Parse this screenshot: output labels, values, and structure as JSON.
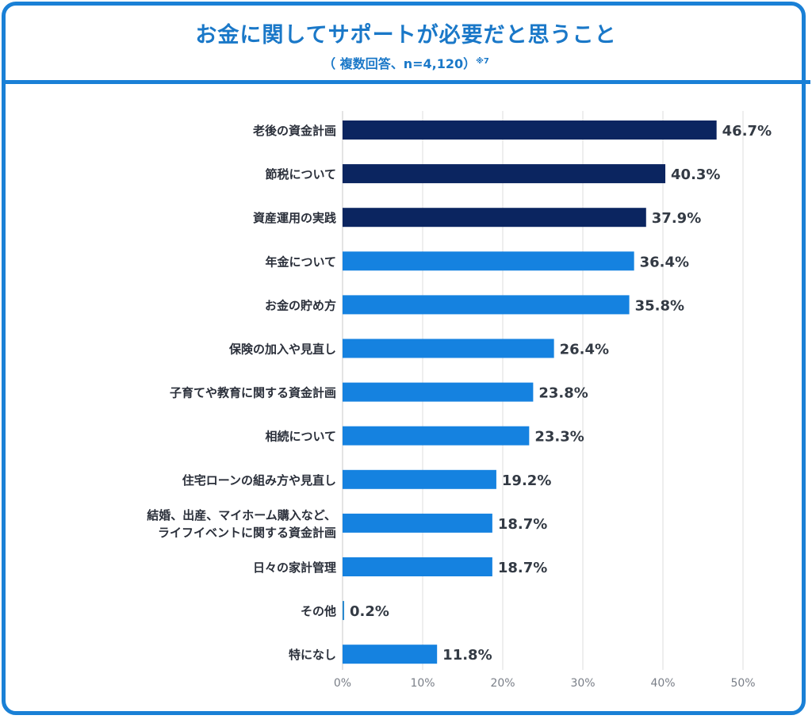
{
  "chart_data": {
    "type": "bar",
    "orientation": "horizontal",
    "title": "お金に関してサポートが必要だと思うこと",
    "subtitle": "（ 複数回答、n=4,120）",
    "subtitle_note": "※7",
    "xlabel": "",
    "ylabel": "",
    "xlim": [
      0,
      50
    ],
    "grid": true,
    "categories": [
      [
        "老後の資金計画"
      ],
      [
        "節税について"
      ],
      [
        "資産運用の実践"
      ],
      [
        "年金について"
      ],
      [
        "お金の貯め方"
      ],
      [
        "保険の加入や見直し"
      ],
      [
        "子育てや教育に関する資金計画"
      ],
      [
        "相続について"
      ],
      [
        "住宅ローンの組み方や見直し"
      ],
      [
        "結婚、出産、マイホーム購入など、",
        "ライフイベントに関する資金計画"
      ],
      [
        "日々の家計管理"
      ],
      [
        "その他"
      ],
      [
        "特になし"
      ]
    ],
    "values": [
      46.7,
      40.3,
      37.9,
      36.4,
      35.8,
      26.4,
      23.8,
      23.3,
      19.2,
      18.7,
      18.7,
      0.2,
      11.8
    ],
    "value_labels": [
      "46.7%",
      "40.3%",
      "37.9%",
      "36.4%",
      "35.8%",
      "26.4%",
      "23.8%",
      "23.3%",
      "19.2%",
      "18.7%",
      "18.7%",
      "0.2%",
      "11.8%"
    ],
    "highlight_count": 3,
    "colors": {
      "highlight": "#0b2560",
      "normal": "#1582e0",
      "other": "#2a8ad0",
      "grid": "#dcdcdc",
      "title": "#1a78c8"
    },
    "ticks": [
      0,
      10,
      20,
      30,
      40,
      50
    ],
    "tick_labels": [
      "0%",
      "10%",
      "20%",
      "30%",
      "40%",
      "50%"
    ]
  }
}
